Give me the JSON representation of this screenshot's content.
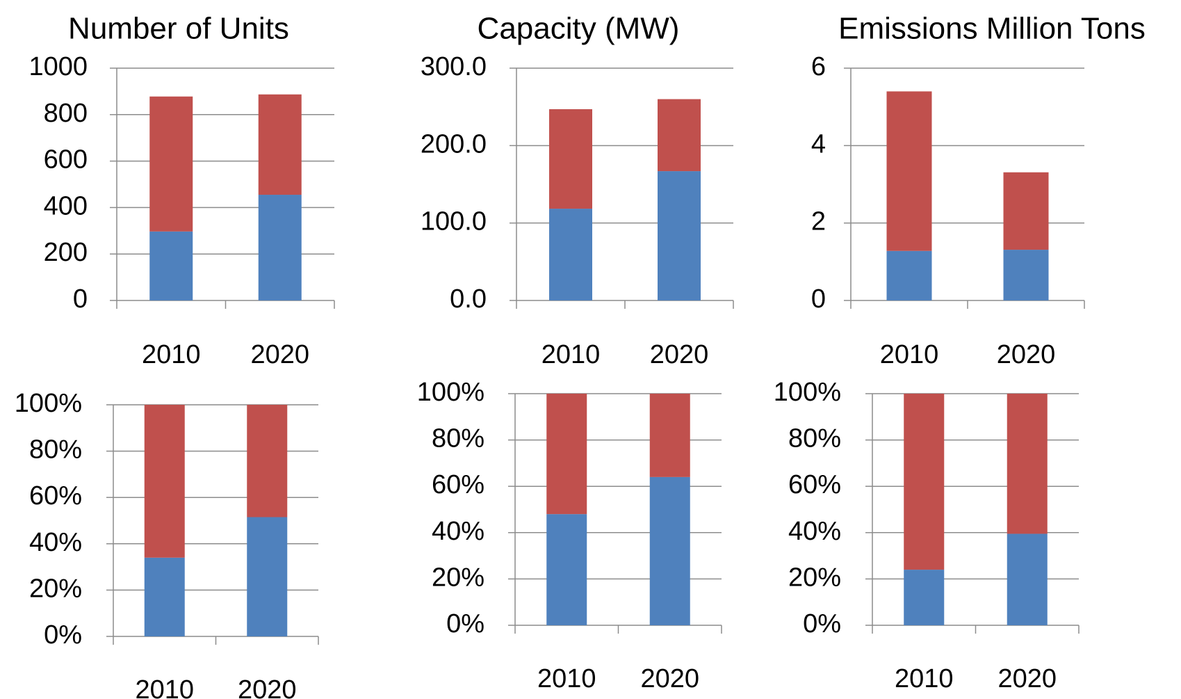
{
  "colors": {
    "series_bottom": "#4f81bd",
    "series_top": "#c0504d"
  },
  "chart_data": [
    {
      "type": "bar",
      "stacked": true,
      "title": "Number of Units",
      "categories": [
        "2010",
        "2020"
      ],
      "series": [
        {
          "values": [
            297,
            455
          ]
        },
        {
          "values": [
            581,
            432
          ]
        }
      ],
      "ylim": [
        0,
        1000
      ],
      "yticks": [
        "0",
        "200",
        "400",
        "600",
        "800",
        "1000"
      ],
      "grid": true
    },
    {
      "type": "bar",
      "stacked": true,
      "title": "Capacity (MW)",
      "categories": [
        "2010",
        "2020"
      ],
      "series": [
        {
          "values": [
            118.5,
            167
          ]
        },
        {
          "values": [
            128.5,
            93
          ]
        }
      ],
      "ylim": [
        0,
        300
      ],
      "yticks": [
        "0.0",
        "100.0",
        "200.0",
        "300.0"
      ],
      "grid": true
    },
    {
      "type": "bar",
      "stacked": true,
      "title": "Emissions  Million Tons",
      "categories": [
        "2010",
        "2020"
      ],
      "series": [
        {
          "values": [
            1.28,
            1.31
          ]
        },
        {
          "values": [
            4.12,
            2.0
          ]
        }
      ],
      "ylim": [
        0,
        6
      ],
      "yticks": [
        "0",
        "2",
        "4",
        "6"
      ],
      "grid": true
    },
    {
      "type": "bar",
      "stacked": true,
      "percent": true,
      "title": "",
      "categories": [
        "2010",
        "2020"
      ],
      "series": [
        {
          "values": [
            34,
            51.5
          ]
        },
        {
          "values": [
            66,
            48.5
          ]
        }
      ],
      "ylim": [
        0,
        100
      ],
      "yticks": [
        "0%",
        "20%",
        "40%",
        "60%",
        "80%",
        "100%"
      ],
      "grid": true
    },
    {
      "type": "bar",
      "stacked": true,
      "percent": true,
      "title": "",
      "categories": [
        "2010",
        "2020"
      ],
      "series": [
        {
          "values": [
            48,
            64
          ]
        },
        {
          "values": [
            52,
            36
          ]
        }
      ],
      "ylim": [
        0,
        100
      ],
      "yticks": [
        "0%",
        "20%",
        "40%",
        "60%",
        "80%",
        "100%"
      ],
      "grid": true
    },
    {
      "type": "bar",
      "stacked": true,
      "percent": true,
      "title": "",
      "categories": [
        "2010",
        "2020"
      ],
      "series": [
        {
          "values": [
            24,
            39.5
          ]
        },
        {
          "values": [
            76,
            60.5
          ]
        }
      ],
      "ylim": [
        0,
        100
      ],
      "yticks": [
        "0%",
        "20%",
        "40%",
        "60%",
        "80%",
        "100%"
      ],
      "grid": true
    }
  ]
}
